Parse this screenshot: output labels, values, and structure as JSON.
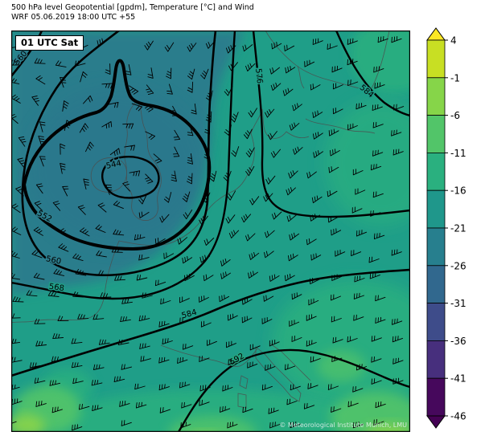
{
  "header": {
    "line1": "500 hPa level Geopotential [gpdm], Temperature [°C] and Wind",
    "line2": "WRF 05.06.2019 18:00 UTC +55"
  },
  "map": {
    "valid_badge": "01 UTC Sat",
    "watermark": "© Meteorological Institute Munich, LMU"
  },
  "chart_data": {
    "type": "heatmap",
    "title": "500 hPa level Geopotential [gpdm], Temperature [°C] and Wind",
    "subtitle": "WRF 05.06.2019 18:00 UTC +55",
    "valid_label": "01 UTC Sat",
    "shading_variable": "Temperature [°C] at 500 hPa",
    "contour_variable": "Geopotential [gpdm]",
    "wind_symbols": "barbs",
    "contour_levels_labeled": [
      544,
      552,
      560,
      568,
      576,
      584,
      592
    ],
    "contour_labels": [
      "560",
      "544",
      "552",
      "560",
      "568",
      "576",
      "584",
      "584",
      "592"
    ],
    "colorbar": {
      "orientation": "vertical-right",
      "unit": "°C",
      "tick_labels": [
        "4",
        "-1",
        "-6",
        "-11",
        "-16",
        "-21",
        "-26",
        "-31",
        "-36",
        "-41",
        "-46"
      ],
      "segment_colors": [
        "#c8df23",
        "#86d549",
        "#52c569",
        "#2ab07f",
        "#1f978b",
        "#277f8e",
        "#31688e",
        "#3e4c8a",
        "#472f7d",
        "#46085c"
      ],
      "over_arrow_color": "#fde725",
      "under_arrow_color": "#440154"
    },
    "field_colors": {
      "base_bin_-16_-21": "#1f9e88",
      "cold_pool_bin_-21_-26": "#2c7d8c",
      "mild_bin_-11_-16": "#2ab07f",
      "mild_bin_-6_-11": "#52c569",
      "mild_bin_-1_-6": "#8bd54a"
    },
    "features": {
      "cold_low_center": "closed 544 gpdm low with -21 to -26 °C pool over Ireland / UK",
      "ridge": "584-592 gpdm and milder air over southern and southeastern part of domain"
    }
  }
}
